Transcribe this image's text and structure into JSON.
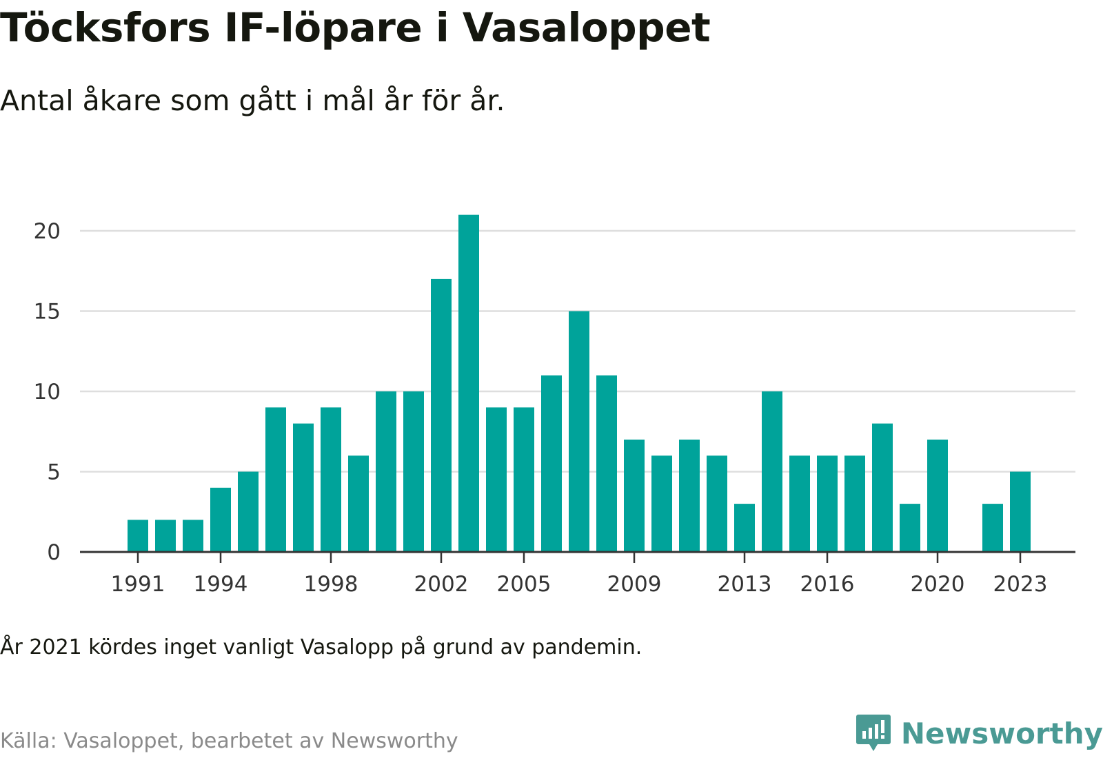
{
  "title": "Töcksfors IF-löpare i Vasaloppet",
  "subtitle": "Antal åkare som gått i mål år för år.",
  "note": "År 2021 kördes inget vanligt Vasalopp på grund av pandemin.",
  "source": "Källa: Vasaloppet, bearbetet av Newsworthy",
  "brand": {
    "name": "Newsworthy",
    "icon": "newsworthy-logo-icon",
    "color": "#4a9a94"
  },
  "chart_data": {
    "type": "bar",
    "title": "Töcksfors IF-löpare i Vasaloppet",
    "subtitle": "Antal åkare som gått i mål år för år.",
    "xlabel": "",
    "ylabel": "",
    "x": [
      1991,
      1992,
      1993,
      1994,
      1995,
      1996,
      1997,
      1998,
      1999,
      2000,
      2001,
      2002,
      2003,
      2004,
      2005,
      2006,
      2007,
      2008,
      2009,
      2010,
      2011,
      2012,
      2013,
      2014,
      2015,
      2016,
      2017,
      2018,
      2019,
      2020,
      2021,
      2022,
      2023
    ],
    "values": [
      2,
      2,
      2,
      4,
      5,
      9,
      8,
      9,
      6,
      10,
      10,
      17,
      21,
      9,
      9,
      11,
      15,
      11,
      7,
      6,
      7,
      6,
      3,
      10,
      6,
      6,
      6,
      8,
      3,
      7,
      null,
      3,
      5
    ],
    "xticks": [
      1991,
      1994,
      1998,
      2002,
      2005,
      2009,
      2013,
      2016,
      2020,
      2023
    ],
    "yticks": [
      0,
      5,
      10,
      15,
      20
    ],
    "ylim": [
      0,
      21
    ],
    "grid": true,
    "bar_color": "#00a39a"
  }
}
